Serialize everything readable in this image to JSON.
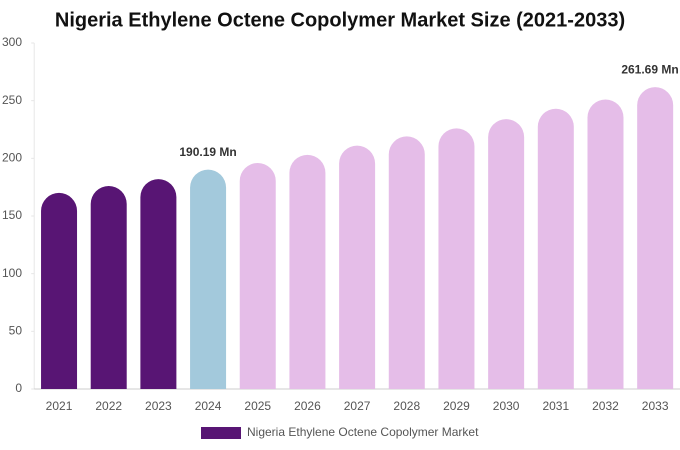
{
  "chart_data": {
    "type": "bar",
    "title": "Nigeria Ethylene Octene Copolymer Market Size (2021-2033)",
    "categories": [
      "2021",
      "2022",
      "2023",
      "2024",
      "2025",
      "2026",
      "2027",
      "2028",
      "2029",
      "2030",
      "2031",
      "2032",
      "2033"
    ],
    "series": [
      {
        "name": "Nigeria Ethylene Octene Copolymer Market",
        "color": "#581574",
        "colors": [
          "#581574",
          "#581574",
          "#581574",
          "#a3c9dc",
          "#e5bde8",
          "#e5bde8",
          "#e5bde8",
          "#e5bde8",
          "#e5bde8",
          "#e5bde8",
          "#e5bde8",
          "#e5bde8",
          "#e5bde8"
        ],
        "values": [
          170,
          176,
          182,
          190.19,
          196,
          203,
          211,
          219,
          226,
          234,
          243,
          251,
          261.69
        ],
        "value_labels": [
          null,
          null,
          null,
          "190.19 Mn",
          null,
          null,
          null,
          null,
          null,
          null,
          null,
          null,
          "261.69 Mn"
        ]
      }
    ],
    "ylim": [
      0,
      300
    ],
    "yticks": [
      0,
      50,
      100,
      150,
      200,
      250,
      300
    ],
    "legend": "bottom"
  }
}
